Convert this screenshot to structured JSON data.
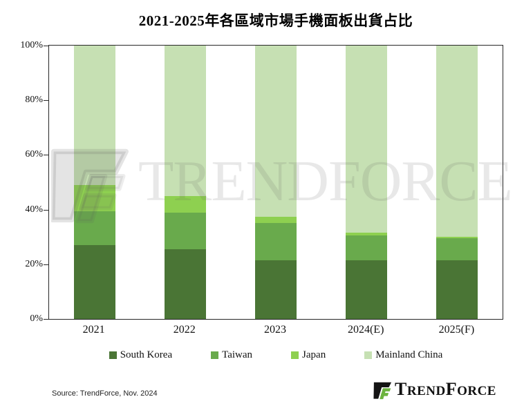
{
  "title": "2021-2025年各區域市場手機面板出貨占比",
  "source_note": "Source: TrendForce, Nov. 2024",
  "watermark": {
    "text": "TRENDFORCE"
  },
  "brand": {
    "part1_cap": "T",
    "part1_rest": "REND",
    "part2_cap": "F",
    "part2_rest": "ORCE",
    "icon_black": "#141414",
    "icon_green": "#6cb33e"
  },
  "colors": {
    "axis": "#262626",
    "south_korea": "#4a7535",
    "taiwan": "#69aa4c",
    "japan": "#8ed050",
    "mainland_china": "#c6e0b3"
  },
  "chart_data": {
    "type": "bar",
    "stacked": true,
    "title": "2021-2025年各區域市場手機面板出貨占比",
    "categories": [
      "2021",
      "2022",
      "2023",
      "2024(E)",
      "2025(F)"
    ],
    "series": [
      {
        "name": "South Korea",
        "color": "#4a7535",
        "values": [
          27.0,
          25.5,
          21.5,
          21.5,
          21.5
        ]
      },
      {
        "name": "Taiwan",
        "color": "#69aa4c",
        "values": [
          12.5,
          13.5,
          13.5,
          9.0,
          8.0
        ]
      },
      {
        "name": "Japan",
        "color": "#8ed050",
        "values": [
          9.5,
          6.0,
          2.5,
          1.0,
          0.5
        ]
      },
      {
        "name": "Mainland China",
        "color": "#c6e0b3",
        "values": [
          51.0,
          55.0,
          62.5,
          68.5,
          70.0
        ]
      }
    ],
    "xlabel": "",
    "ylabel": "",
    "ylim": [
      0,
      100
    ],
    "yticks": [
      "0%",
      "20%",
      "40%",
      "60%",
      "80%",
      "100%"
    ],
    "grid": false,
    "legend_position": "bottom"
  }
}
